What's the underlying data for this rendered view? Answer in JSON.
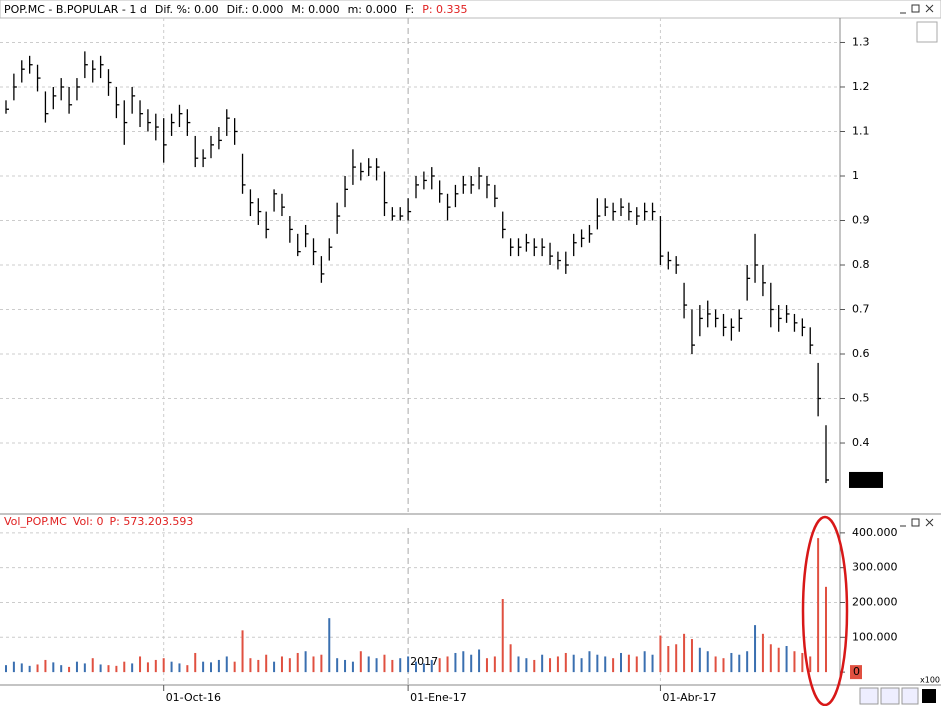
{
  "chart_data": [
    {
      "type": "ohlc",
      "header": [
        "POP.MC - B.POPULAR - 1 d",
        "Dif. %: 0.00",
        "Dif.: 0.000",
        "M: 0.000",
        "m: 0.000",
        "F:",
        "P: 0.335"
      ],
      "header_colors": [
        "#000000",
        "#000000",
        "#000000",
        "#000000",
        "#000000",
        "#000000",
        "#e02020"
      ],
      "categories": [
        null,
        null,
        null,
        null,
        null,
        null,
        null,
        null,
        null,
        null,
        null,
        null,
        null,
        null,
        null,
        null,
        null,
        null,
        null,
        null,
        "01-Oct-16",
        null,
        null,
        null,
        null,
        null,
        null,
        null,
        null,
        null,
        null,
        null,
        null,
        null,
        null,
        null,
        null,
        null,
        null,
        null,
        null,
        null,
        null,
        null,
        null,
        null,
        null,
        null,
        null,
        null,
        null,
        "01-Ene-17",
        null,
        null,
        null,
        null,
        null,
        null,
        null,
        null,
        null,
        null,
        null,
        null,
        null,
        null,
        null,
        null,
        null,
        null,
        null,
        null,
        null,
        null,
        null,
        null,
        null,
        null,
        null,
        null,
        null,
        null,
        null,
        "01-Abr-17",
        null,
        null,
        null,
        null,
        null,
        null,
        null,
        null,
        null,
        null,
        null,
        null,
        null,
        null,
        null,
        null,
        null,
        null,
        null,
        null,
        null
      ],
      "high": [
        1.17,
        1.23,
        1.26,
        1.27,
        1.25,
        1.19,
        1.2,
        1.22,
        1.2,
        1.22,
        1.28,
        1.26,
        1.27,
        1.24,
        1.2,
        1.17,
        1.2,
        1.17,
        1.15,
        1.14,
        1.13,
        1.14,
        1.16,
        1.15,
        1.09,
        1.06,
        1.09,
        1.11,
        1.15,
        1.13,
        1.05,
        0.97,
        0.95,
        0.92,
        0.97,
        0.96,
        0.91,
        0.87,
        0.89,
        0.86,
        0.82,
        0.86,
        0.94,
        1.0,
        1.06,
        1.03,
        1.04,
        1.04,
        1.01,
        0.93,
        0.93,
        0.95,
        1.0,
        1.01,
        1.02,
        0.99,
        0.96,
        0.98,
        1.0,
        1.0,
        1.02,
        1.0,
        0.98,
        0.92,
        0.86,
        0.86,
        0.87,
        0.86,
        0.86,
        0.85,
        0.83,
        0.83,
        0.87,
        0.88,
        0.89,
        0.95,
        0.95,
        0.94,
        0.95,
        0.94,
        0.93,
        0.94,
        0.94,
        0.91,
        0.83,
        0.82,
        0.76,
        0.7,
        0.71,
        0.72,
        0.7,
        0.69,
        0.68,
        0.7,
        0.8,
        0.87,
        0.8,
        0.76,
        0.71,
        0.71,
        0.69,
        0.68,
        0.66,
        0.58,
        0.44
      ],
      "low": [
        1.14,
        1.17,
        1.21,
        1.23,
        1.19,
        1.12,
        1.15,
        1.17,
        1.14,
        1.17,
        1.22,
        1.21,
        1.22,
        1.18,
        1.13,
        1.07,
        1.14,
        1.11,
        1.1,
        1.08,
        1.03,
        1.09,
        1.11,
        1.09,
        1.02,
        1.02,
        1.04,
        1.06,
        1.09,
        1.07,
        0.96,
        0.91,
        0.89,
        0.86,
        0.92,
        0.91,
        0.85,
        0.82,
        0.84,
        0.8,
        0.76,
        0.81,
        0.87,
        0.93,
        0.98,
        0.99,
        1.0,
        0.99,
        0.91,
        0.9,
        0.9,
        0.9,
        0.95,
        0.97,
        0.97,
        0.94,
        0.9,
        0.93,
        0.96,
        0.96,
        0.97,
        0.95,
        0.93,
        0.86,
        0.82,
        0.82,
        0.83,
        0.82,
        0.82,
        0.8,
        0.79,
        0.78,
        0.82,
        0.84,
        0.85,
        0.88,
        0.91,
        0.9,
        0.91,
        0.9,
        0.89,
        0.9,
        0.9,
        0.8,
        0.79,
        0.78,
        0.68,
        0.6,
        0.64,
        0.66,
        0.66,
        0.64,
        0.63,
        0.65,
        0.72,
        0.76,
        0.73,
        0.66,
        0.65,
        0.67,
        0.65,
        0.64,
        0.6,
        0.46,
        0.31
      ],
      "close": [
        1.15,
        1.2,
        1.24,
        1.25,
        1.22,
        1.14,
        1.18,
        1.2,
        1.16,
        1.2,
        1.25,
        1.24,
        1.25,
        1.21,
        1.16,
        1.12,
        1.18,
        1.14,
        1.12,
        1.11,
        1.07,
        1.12,
        1.14,
        1.12,
        1.04,
        1.04,
        1.07,
        1.08,
        1.13,
        1.1,
        0.98,
        0.94,
        0.92,
        0.88,
        0.96,
        0.93,
        0.88,
        0.83,
        0.87,
        0.83,
        0.78,
        0.84,
        0.91,
        0.97,
        1.02,
        1.01,
        1.02,
        1.02,
        0.94,
        0.91,
        0.91,
        0.92,
        0.98,
        0.99,
        1.0,
        0.96,
        0.93,
        0.96,
        0.98,
        0.98,
        1.0,
        0.98,
        0.95,
        0.88,
        0.84,
        0.84,
        0.85,
        0.84,
        0.84,
        0.82,
        0.81,
        0.8,
        0.85,
        0.86,
        0.87,
        0.91,
        0.93,
        0.92,
        0.93,
        0.92,
        0.91,
        0.92,
        0.92,
        0.82,
        0.81,
        0.8,
        0.71,
        0.62,
        0.68,
        0.69,
        0.68,
        0.66,
        0.66,
        0.68,
        0.77,
        0.8,
        0.76,
        0.7,
        0.68,
        0.69,
        0.67,
        0.66,
        0.62,
        0.5,
        0.317
      ],
      "color": "#000000",
      "ylim": [
        0.245,
        1.355
      ],
      "yticks": [
        0.4,
        0.5,
        0.6,
        0.7,
        0.8,
        0.9,
        1,
        1.1,
        1.2,
        1.3
      ],
      "grid": true
    },
    {
      "type": "bar",
      "header": [
        "Vol_POP.MC",
        "Vol: 0",
        "P: 573.203.593"
      ],
      "header_color": "#e02020",
      "values": [
        20000,
        30000,
        25000,
        18000,
        22000,
        35000,
        28000,
        20000,
        15000,
        30000,
        25000,
        40000,
        22000,
        20000,
        18000,
        30000,
        25000,
        45000,
        28000,
        35000,
        40000,
        30000,
        25000,
        20000,
        55000,
        30000,
        28000,
        35000,
        45000,
        30000,
        120000,
        40000,
        35000,
        50000,
        30000,
        45000,
        40000,
        55000,
        60000,
        45000,
        50000,
        155000,
        40000,
        35000,
        30000,
        60000,
        45000,
        40000,
        50000,
        35000,
        40000,
        45000,
        30000,
        25000,
        35000,
        40000,
        45000,
        55000,
        60000,
        50000,
        65000,
        40000,
        45000,
        210000,
        80000,
        45000,
        40000,
        35000,
        50000,
        40000,
        45000,
        55000,
        50000,
        40000,
        60000,
        50000,
        45000,
        40000,
        55000,
        50000,
        45000,
        60000,
        50000,
        105000,
        75000,
        80000,
        110000,
        95000,
        70000,
        60000,
        45000,
        40000,
        55000,
        50000,
        60000,
        135000,
        110000,
        80000,
        70000,
        75000,
        60000,
        55000,
        45000,
        385000,
        245000
      ],
      "up_color": "#3a6fb0",
      "down_color": "#e05040",
      "ylim": [
        -37000,
        414000
      ],
      "yticks": [
        0,
        {
          "value": 100000,
          "label": "100.000"
        },
        {
          "value": 200000,
          "label": "200.000"
        },
        {
          "value": 300000,
          "label": "300.000"
        },
        {
          "value": 400000,
          "label": "400.000"
        }
      ],
      "year_label": "2017",
      "scale_label": "x100",
      "grid": true
    }
  ]
}
